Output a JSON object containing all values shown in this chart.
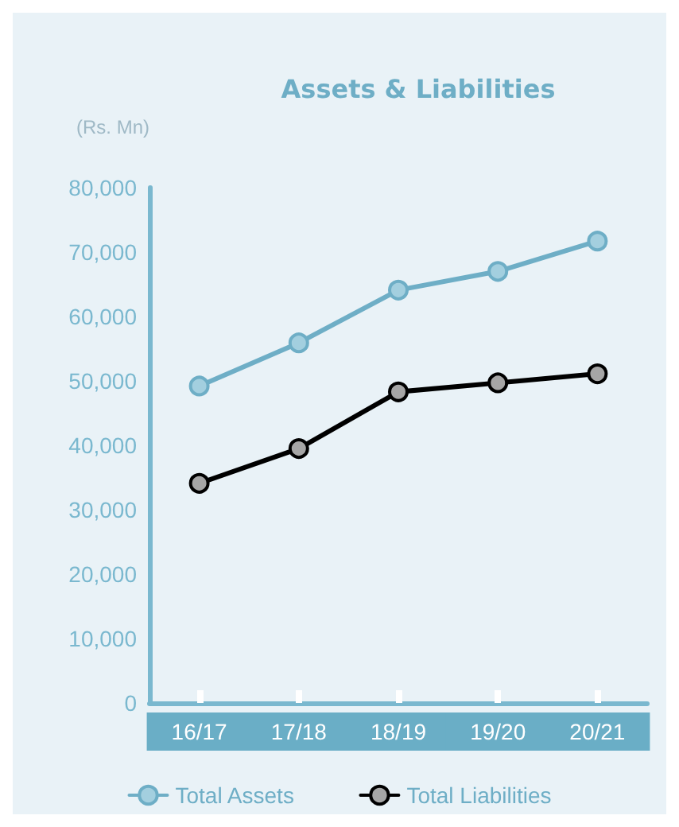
{
  "chart_data": {
    "type": "line",
    "title": "Assets & Liabilities",
    "ylabel": "(Rs. Mn)",
    "categories": [
      "16/17",
      "17/18",
      "18/19",
      "19/20",
      "20/21"
    ],
    "series": [
      {
        "name": "Total Assets",
        "color": "#6eaec6",
        "values": [
          49200,
          55900,
          64100,
          67000,
          71700
        ]
      },
      {
        "name": "Total Liabilities",
        "color": "#000000",
        "values": [
          34100,
          39500,
          48300,
          49700,
          51100
        ]
      }
    ],
    "ylim": [
      0,
      80000
    ],
    "yticks": [
      0,
      {
        "value": 10000,
        "label": "10,000"
      },
      {
        "value": 20000,
        "label": "20,000"
      },
      {
        "value": 30000,
        "label": "30,000"
      },
      {
        "value": 40000,
        "label": "40,000"
      },
      {
        "value": 50000,
        "label": "50,000"
      },
      {
        "value": 60000,
        "label": "60,000"
      },
      {
        "value": 70000,
        "label": "70,000"
      },
      {
        "value": 80000,
        "label": "80,000"
      }
    ],
    "grid": false,
    "legend": "bottom",
    "marker": "circle",
    "line_style": "solid"
  }
}
